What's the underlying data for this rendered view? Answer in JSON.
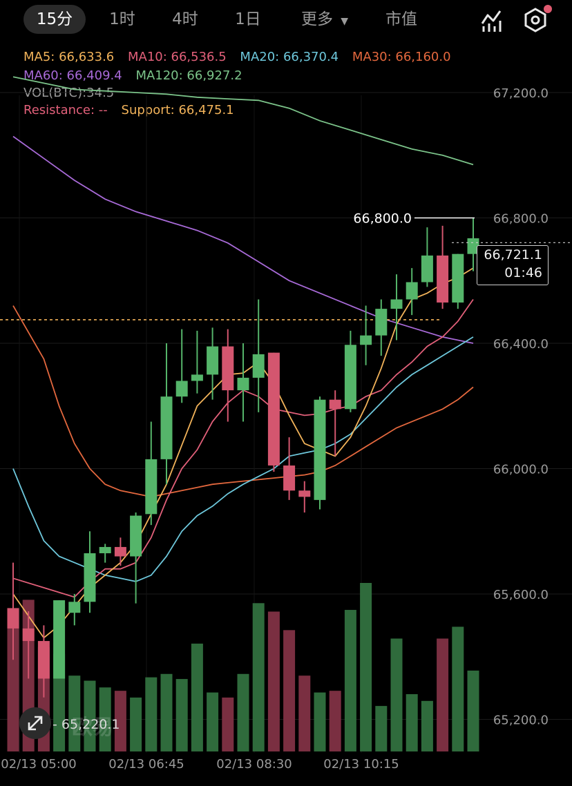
{
  "toolbar": {
    "timeframes": [
      "15分",
      "1时",
      "4时",
      "1日"
    ],
    "more_label": "更多",
    "market_cap_label": "市值"
  },
  "legend": {
    "ma5": "MA5: 66,633.6",
    "ma10": "MA10: 66,536.5",
    "ma20": "MA20: 66,370.4",
    "ma30": "MA30: 66,160.0",
    "ma60": "MA60: 66,409.4",
    "ma120": "MA120: 66,927.2",
    "vol": "VOL(BTC):34.5",
    "resistance": "Resistance: --",
    "support": "Support: 66,475.1"
  },
  "colors": {
    "up": "#55b56a",
    "down": "#d4566f",
    "ma5": "#f2b35a",
    "ma10": "#e2607a",
    "ma20": "#6ec8dc",
    "ma30": "#e4683e",
    "ma60": "#a86ad8",
    "ma120": "#7cc48a",
    "support": "#f2b35a"
  },
  "price": {
    "current": "66,721.1",
    "countdown": "01:46",
    "high_label": "66,800.0",
    "low_label": "65,220.1"
  },
  "watermark": "欧易",
  "chart_data": {
    "type": "candlestick",
    "y_ticks": [
      "67,200.0",
      "66,800.0",
      "66,400.0",
      "66,000.0",
      "65,600.0",
      "65,200.0"
    ],
    "y_tick_values": [
      67200,
      66800,
      66400,
      66000,
      65600,
      65200
    ],
    "x_ticks": [
      "02/13 05:00",
      "02/13 06:45",
      "02/13 08:30",
      "02/13 10:15"
    ],
    "support": 66475.1,
    "candles": [
      {
        "o": 65555,
        "h": 65700,
        "l": 65390,
        "c": 65490
      },
      {
        "o": 65490,
        "h": 65545,
        "l": 65330,
        "c": 65450
      },
      {
        "o": 65450,
        "h": 65500,
        "l": 65270,
        "c": 65330
      },
      {
        "o": 65330,
        "h": 65580,
        "l": 65330,
        "c": 65580
      },
      {
        "o": 65540,
        "h": 65600,
        "l": 65500,
        "c": 65575
      },
      {
        "o": 65575,
        "h": 65800,
        "l": 65540,
        "c": 65730
      },
      {
        "o": 65730,
        "h": 65760,
        "l": 65700,
        "c": 65750
      },
      {
        "o": 65750,
        "h": 65780,
        "l": 65690,
        "c": 65720
      },
      {
        "o": 65720,
        "h": 65860,
        "l": 65570,
        "c": 65850
      },
      {
        "o": 65855,
        "h": 66150,
        "l": 65820,
        "c": 66030
      },
      {
        "o": 66030,
        "h": 66400,
        "l": 65950,
        "c": 66230
      },
      {
        "o": 66230,
        "h": 66445,
        "l": 66210,
        "c": 66280
      },
      {
        "o": 66280,
        "h": 66440,
        "l": 66240,
        "c": 66300
      },
      {
        "o": 66300,
        "h": 66450,
        "l": 66220,
        "c": 66390
      },
      {
        "o": 66390,
        "h": 66445,
        "l": 66150,
        "c": 66250
      },
      {
        "o": 66250,
        "h": 66400,
        "l": 66150,
        "c": 66290
      },
      {
        "o": 66290,
        "h": 66540,
        "l": 66180,
        "c": 66365
      },
      {
        "o": 66370,
        "h": 66370,
        "l": 65990,
        "c": 66010
      },
      {
        "o": 66010,
        "h": 66100,
        "l": 65900,
        "c": 65930
      },
      {
        "o": 65930,
        "h": 65960,
        "l": 65860,
        "c": 65910
      },
      {
        "o": 65900,
        "h": 66230,
        "l": 65870,
        "c": 66220
      },
      {
        "o": 66220,
        "h": 66250,
        "l": 66040,
        "c": 66190
      },
      {
        "o": 66190,
        "h": 66440,
        "l": 66180,
        "c": 66395
      },
      {
        "o": 66395,
        "h": 66520,
        "l": 66330,
        "c": 66425
      },
      {
        "o": 66425,
        "h": 66540,
        "l": 66360,
        "c": 66510
      },
      {
        "o": 66510,
        "h": 66620,
        "l": 66410,
        "c": 66540
      },
      {
        "o": 66540,
        "h": 66640,
        "l": 66490,
        "c": 66595
      },
      {
        "o": 66595,
        "h": 66770,
        "l": 66580,
        "c": 66680
      },
      {
        "o": 66680,
        "h": 66775,
        "l": 66510,
        "c": 66530
      },
      {
        "o": 66530,
        "h": 66685,
        "l": 66510,
        "c": 66685
      },
      {
        "o": 66685,
        "h": 66800,
        "l": 66630,
        "c": 66735
      }
    ],
    "volume_ratio": [
      0.75,
      0.9,
      0.62,
      0.58,
      0.45,
      0.42,
      0.38,
      0.36,
      0.32,
      0.44,
      0.46,
      0.43,
      0.64,
      0.35,
      0.32,
      0.46,
      0.88,
      0.83,
      0.72,
      0.45,
      0.35,
      0.36,
      0.84,
      1.0,
      0.27,
      0.67,
      0.34,
      0.3,
      0.67,
      0.74,
      0.48
    ],
    "ma_lines": {
      "ma5": [
        [
          0,
          65600
        ],
        [
          2,
          65460
        ],
        [
          3,
          65500
        ],
        [
          5,
          65620
        ],
        [
          7,
          65700
        ],
        [
          8,
          65760
        ],
        [
          10,
          65950
        ],
        [
          12,
          66200
        ],
        [
          14,
          66300
        ],
        [
          15,
          66305
        ],
        [
          16,
          66340
        ],
        [
          17,
          66270
        ],
        [
          18,
          66170
        ],
        [
          19,
          66080
        ],
        [
          20,
          66060
        ],
        [
          21,
          66040
        ],
        [
          22,
          66100
        ],
        [
          23,
          66200
        ],
        [
          24,
          66320
        ],
        [
          25,
          66460
        ],
        [
          26,
          66540
        ],
        [
          27,
          66560
        ],
        [
          28,
          66590
        ],
        [
          29,
          66610
        ],
        [
          30,
          66640
        ]
      ],
      "ma10": [
        [
          0,
          65650
        ],
        [
          2,
          65620
        ],
        [
          4,
          65590
        ],
        [
          5,
          65640
        ],
        [
          6,
          65680
        ],
        [
          7,
          65680
        ],
        [
          8,
          65700
        ],
        [
          9,
          65780
        ],
        [
          10,
          65900
        ],
        [
          11,
          66000
        ],
        [
          12,
          66060
        ],
        [
          13,
          66150
        ],
        [
          14,
          66210
        ],
        [
          15,
          66250
        ],
        [
          16,
          66230
        ],
        [
          17,
          66190
        ],
        [
          18,
          66180
        ],
        [
          19,
          66170
        ],
        [
          20,
          66175
        ],
        [
          21,
          66190
        ],
        [
          22,
          66200
        ],
        [
          23,
          66230
        ],
        [
          24,
          66250
        ],
        [
          25,
          66300
        ],
        [
          26,
          66340
        ],
        [
          27,
          66390
        ],
        [
          28,
          66420
        ],
        [
          29,
          66470
        ],
        [
          30,
          66540
        ]
      ],
      "ma20": [
        [
          0,
          66000
        ],
        [
          1,
          65880
        ],
        [
          2,
          65770
        ],
        [
          3,
          65720
        ],
        [
          4,
          65700
        ],
        [
          5,
          65680
        ],
        [
          6,
          65660
        ],
        [
          7,
          65650
        ],
        [
          8,
          65640
        ],
        [
          9,
          65660
        ],
        [
          10,
          65720
        ],
        [
          11,
          65800
        ],
        [
          12,
          65850
        ],
        [
          13,
          65880
        ],
        [
          14,
          65920
        ],
        [
          15,
          65950
        ],
        [
          16,
          65975
        ],
        [
          17,
          66000
        ],
        [
          18,
          66040
        ],
        [
          19,
          66050
        ],
        [
          20,
          66060
        ],
        [
          21,
          66080
        ],
        [
          22,
          66110
        ],
        [
          23,
          66160
        ],
        [
          24,
          66210
        ],
        [
          25,
          66260
        ],
        [
          26,
          66300
        ],
        [
          27,
          66330
        ],
        [
          28,
          66360
        ],
        [
          29,
          66390
        ],
        [
          30,
          66420
        ]
      ],
      "ma30": [
        [
          0,
          66520
        ],
        [
          2,
          66350
        ],
        [
          3,
          66200
        ],
        [
          4,
          66080
        ],
        [
          5,
          66000
        ],
        [
          6,
          65950
        ],
        [
          7,
          65930
        ],
        [
          8,
          65920
        ],
        [
          9,
          65910
        ],
        [
          10,
          65920
        ],
        [
          11,
          65930
        ],
        [
          12,
          65940
        ],
        [
          13,
          65950
        ],
        [
          14,
          65955
        ],
        [
          15,
          65960
        ],
        [
          16,
          65965
        ],
        [
          17,
          65970
        ],
        [
          18,
          65975
        ],
        [
          19,
          65980
        ],
        [
          20,
          65990
        ],
        [
          21,
          66010
        ],
        [
          22,
          66040
        ],
        [
          23,
          66070
        ],
        [
          24,
          66100
        ],
        [
          25,
          66130
        ],
        [
          26,
          66150
        ],
        [
          27,
          66170
        ],
        [
          28,
          66190
        ],
        [
          29,
          66220
        ],
        [
          30,
          66260
        ]
      ],
      "ma60": [
        [
          0,
          67060
        ],
        [
          2,
          66990
        ],
        [
          4,
          66920
        ],
        [
          6,
          66860
        ],
        [
          8,
          66820
        ],
        [
          10,
          66790
        ],
        [
          12,
          66760
        ],
        [
          14,
          66720
        ],
        [
          16,
          66660
        ],
        [
          18,
          66600
        ],
        [
          20,
          66560
        ],
        [
          22,
          66520
        ],
        [
          24,
          66480
        ],
        [
          26,
          66450
        ],
        [
          28,
          66420
        ],
        [
          30,
          66400
        ]
      ],
      "ma120": [
        [
          0,
          67250
        ],
        [
          2,
          67230
        ],
        [
          4,
          67210
        ],
        [
          6,
          67205
        ],
        [
          8,
          67200
        ],
        [
          10,
          67195
        ],
        [
          12,
          67185
        ],
        [
          14,
          67180
        ],
        [
          16,
          67175
        ],
        [
          18,
          67150
        ],
        [
          20,
          67110
        ],
        [
          22,
          67080
        ],
        [
          24,
          67050
        ],
        [
          26,
          67020
        ],
        [
          28,
          67000
        ],
        [
          30,
          66970
        ]
      ]
    }
  }
}
